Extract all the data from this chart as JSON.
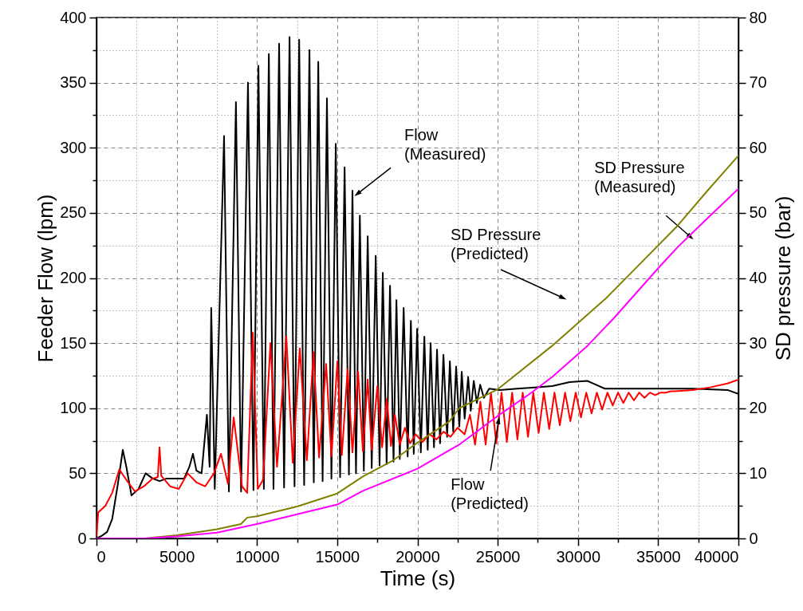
{
  "chart_data": {
    "type": "line",
    "xlabel": "Time (s)",
    "ylabel": "Feeder Flow (lpm)",
    "y2label": "SD pressure (bar)",
    "xlim": [
      0,
      40000
    ],
    "xticks": [
      0,
      {
        "value": 2500,
        "label": null
      },
      5000,
      {
        "value": 7500,
        "label": null
      },
      10000,
      {
        "value": 12500,
        "label": null
      },
      15000,
      {
        "value": 17500,
        "label": null
      },
      20000,
      {
        "value": 22500,
        "label": null
      },
      25000,
      {
        "value": 27500,
        "label": null
      },
      30000,
      {
        "value": 32500,
        "label": null
      },
      35000,
      {
        "value": 37500,
        "label": null
      },
      40000
    ],
    "ylim": [
      0,
      400
    ],
    "yticks": [
      0,
      {
        "value": 25,
        "label": null
      },
      50,
      {
        "value": 75,
        "label": null
      },
      100,
      {
        "value": 125,
        "label": null
      },
      150,
      {
        "value": 175,
        "label": null
      },
      200,
      {
        "value": 225,
        "label": null
      },
      250,
      {
        "value": 275,
        "label": null
      },
      300,
      {
        "value": 325,
        "label": null
      },
      350,
      {
        "value": 375,
        "label": null
      },
      400
    ],
    "y2lim": [
      0,
      80
    ],
    "y2ticks": [
      0,
      {
        "value": 5,
        "label": null
      },
      10,
      {
        "value": 15,
        "label": null
      },
      20,
      {
        "value": 25,
        "label": null
      },
      30,
      {
        "value": 35,
        "label": null
      },
      40,
      {
        "value": 45,
        "label": null
      },
      50,
      {
        "value": 55,
        "label": null
      },
      60,
      {
        "value": 65,
        "label": null
      },
      70,
      {
        "value": 75,
        "label": null
      },
      80
    ],
    "grid": true,
    "annotations": [
      {
        "text": "Flow (Measured)",
        "x": 16300,
        "y": 265
      },
      {
        "text": "SD Pressure (Predicted)",
        "x": 29020,
        "y": 185
      },
      {
        "text": "SD Pressure (Measured)",
        "x": 36980,
        "y": 232
      },
      {
        "text": "Flow (Predicted)",
        "x": 25050,
        "y": 90
      }
    ],
    "series": [
      {
        "color": "#000000",
        "x": [
          0,
          330,
          660,
          980,
          1310,
          1640,
          1860,
          2180,
          2620,
          3060,
          3500,
          3930,
          4370,
          4920,
          5460,
          5790,
          6010,
          6230,
          6550,
          6880,
          7050,
          7150,
          7370,
          7950,
          8250,
          8690,
          9010,
          9440,
          9780,
          10090,
          10430,
          10740,
          11030,
          11380,
          11690,
          12030,
          12340,
          12630,
          12940,
          13270,
          13540,
          13820,
          14090,
          14360,
          14640,
          14910,
          15180,
          15460,
          15730,
          15950,
          16170,
          16410,
          16660,
          16900,
          17150,
          17400,
          17640,
          17840,
          18080,
          18290,
          18510,
          18690,
          18900,
          19140,
          19390,
          19590,
          19770,
          19980,
          20210,
          20430,
          20640,
          20820,
          21030,
          21220,
          21410,
          21620,
          21850,
          22020,
          22230,
          22410,
          22610,
          22760,
          22940,
          23160,
          23320,
          23510,
          23700,
          23910,
          24140,
          24470,
          25120,
          26220,
          27310,
          28400,
          29490,
          30580,
          31130,
          31680,
          32770,
          34950,
          37140,
          39320,
          40000
        ],
        "values": [
          0,
          2,
          5,
          15,
          40,
          68,
          55,
          33,
          38,
          50,
          46,
          44,
          46,
          46,
          46,
          55,
          65,
          52,
          50,
          95,
          55,
          177,
          38,
          309,
          36,
          335,
          36,
          350,
          37,
          363,
          38,
          372,
          38,
          380,
          39,
          385,
          40,
          383,
          41,
          375,
          43,
          366,
          44,
          338,
          46,
          303,
          47,
          285,
          49,
          267,
          50,
          248,
          52,
          232,
          54,
          217,
          56,
          204,
          57,
          194,
          59,
          183,
          61,
          177,
          63,
          167,
          65,
          161,
          66,
          155,
          68,
          150,
          70,
          145,
          73,
          141,
          78,
          136,
          82,
          132,
          86,
          128,
          92,
          124,
          98,
          121,
          104,
          118,
          108,
          115,
          114,
          115,
          116,
          117,
          120,
          121,
          118,
          115,
          115,
          115,
          115,
          114,
          111
        ]
      },
      {
        "color": "#ff0000",
        "x": [
          0,
          110,
          550,
          980,
          1420,
          1860,
          2400,
          2950,
          3500,
          3820,
          3930,
          4040,
          4590,
          5130,
          5680,
          6230,
          6770,
          7320,
          7760,
          8190,
          8550,
          9070,
          9390,
          9740,
          10050,
          10380,
          10840,
          11250,
          11830,
          12230,
          12670,
          13110,
          13520,
          13870,
          14310,
          14640,
          15010,
          15290,
          15650,
          15950,
          16300,
          16600,
          16900,
          17150,
          17500,
          17800,
          18090,
          18350,
          18590,
          18900,
          19220,
          19550,
          19880,
          20320,
          20750,
          21190,
          21630,
          22060,
          22500,
          22940,
          23270,
          23590,
          23920,
          24250,
          24580,
          24910,
          25240,
          25570,
          25900,
          26230,
          26560,
          26890,
          27220,
          27550,
          27880,
          28210,
          28540,
          28870,
          29200,
          29530,
          29860,
          30190,
          30520,
          30850,
          31180,
          31510,
          31840,
          32170,
          32500,
          32830,
          33160,
          33490,
          33820,
          34150,
          34480,
          34810,
          35140,
          35470,
          35800,
          36050,
          37140,
          38230,
          39320,
          40000
        ],
        "values": [
          2,
          20,
          25,
          35,
          53,
          45,
          36,
          40,
          46,
          47,
          70,
          48,
          40,
          38,
          50,
          43,
          40,
          50,
          65,
          42,
          93,
          40,
          35,
          158,
          38,
          45,
          150,
          55,
          155,
          58,
          146,
          60,
          143,
          62,
          134,
          63,
          136,
          64,
          130,
          66,
          128,
          67,
          122,
          68,
          117,
          70,
          107,
          71,
          95,
          72,
          85,
          73,
          80,
          74,
          80,
          76,
          82,
          78,
          85,
          80,
          95,
          72,
          105,
          72,
          112,
          73,
          112,
          74,
          112,
          76,
          112,
          78,
          112,
          81,
          112,
          84,
          112,
          87,
          112,
          90,
          112,
          93,
          112,
          96,
          112,
          99,
          112,
          102,
          112,
          104,
          112,
          106,
          112,
          108,
          112,
          110,
          112,
          112,
          113,
          113,
          114,
          116,
          119,
          122
        ]
      },
      {
        "color": "#808000",
        "axis": "y2",
        "x": [
          0,
          3000,
          5000,
          7500,
          9000,
          9400,
          10000,
          12500,
          15000,
          16600,
          18500,
          20000,
          22000,
          22600,
          25000,
          28400,
          31800,
          34000,
          36200,
          38000,
          40000
        ],
        "values": [
          0,
          0,
          0.5,
          1.4,
          2.2,
          3.2,
          3.4,
          4.9,
          6.9,
          9.5,
          12.0,
          14.7,
          18.0,
          20.0,
          22.9,
          29.6,
          37.0,
          42.5,
          48.0,
          53.2,
          58.8
        ]
      },
      {
        "color": "#ff00ff",
        "axis": "y2",
        "x": [
          0,
          3000,
          5000,
          7500,
          10000,
          12500,
          15000,
          16600,
          20000,
          22600,
          25000,
          27000,
          28400,
          30600,
          32300,
          35000,
          36200,
          38000,
          40000
        ],
        "values": [
          0,
          0,
          0.3,
          0.9,
          2.2,
          3.7,
          5.2,
          7.3,
          10.7,
          14.4,
          18.8,
          22.2,
          24.8,
          29.6,
          34.0,
          41.5,
          44.7,
          49.0,
          53.7
        ]
      }
    ]
  }
}
